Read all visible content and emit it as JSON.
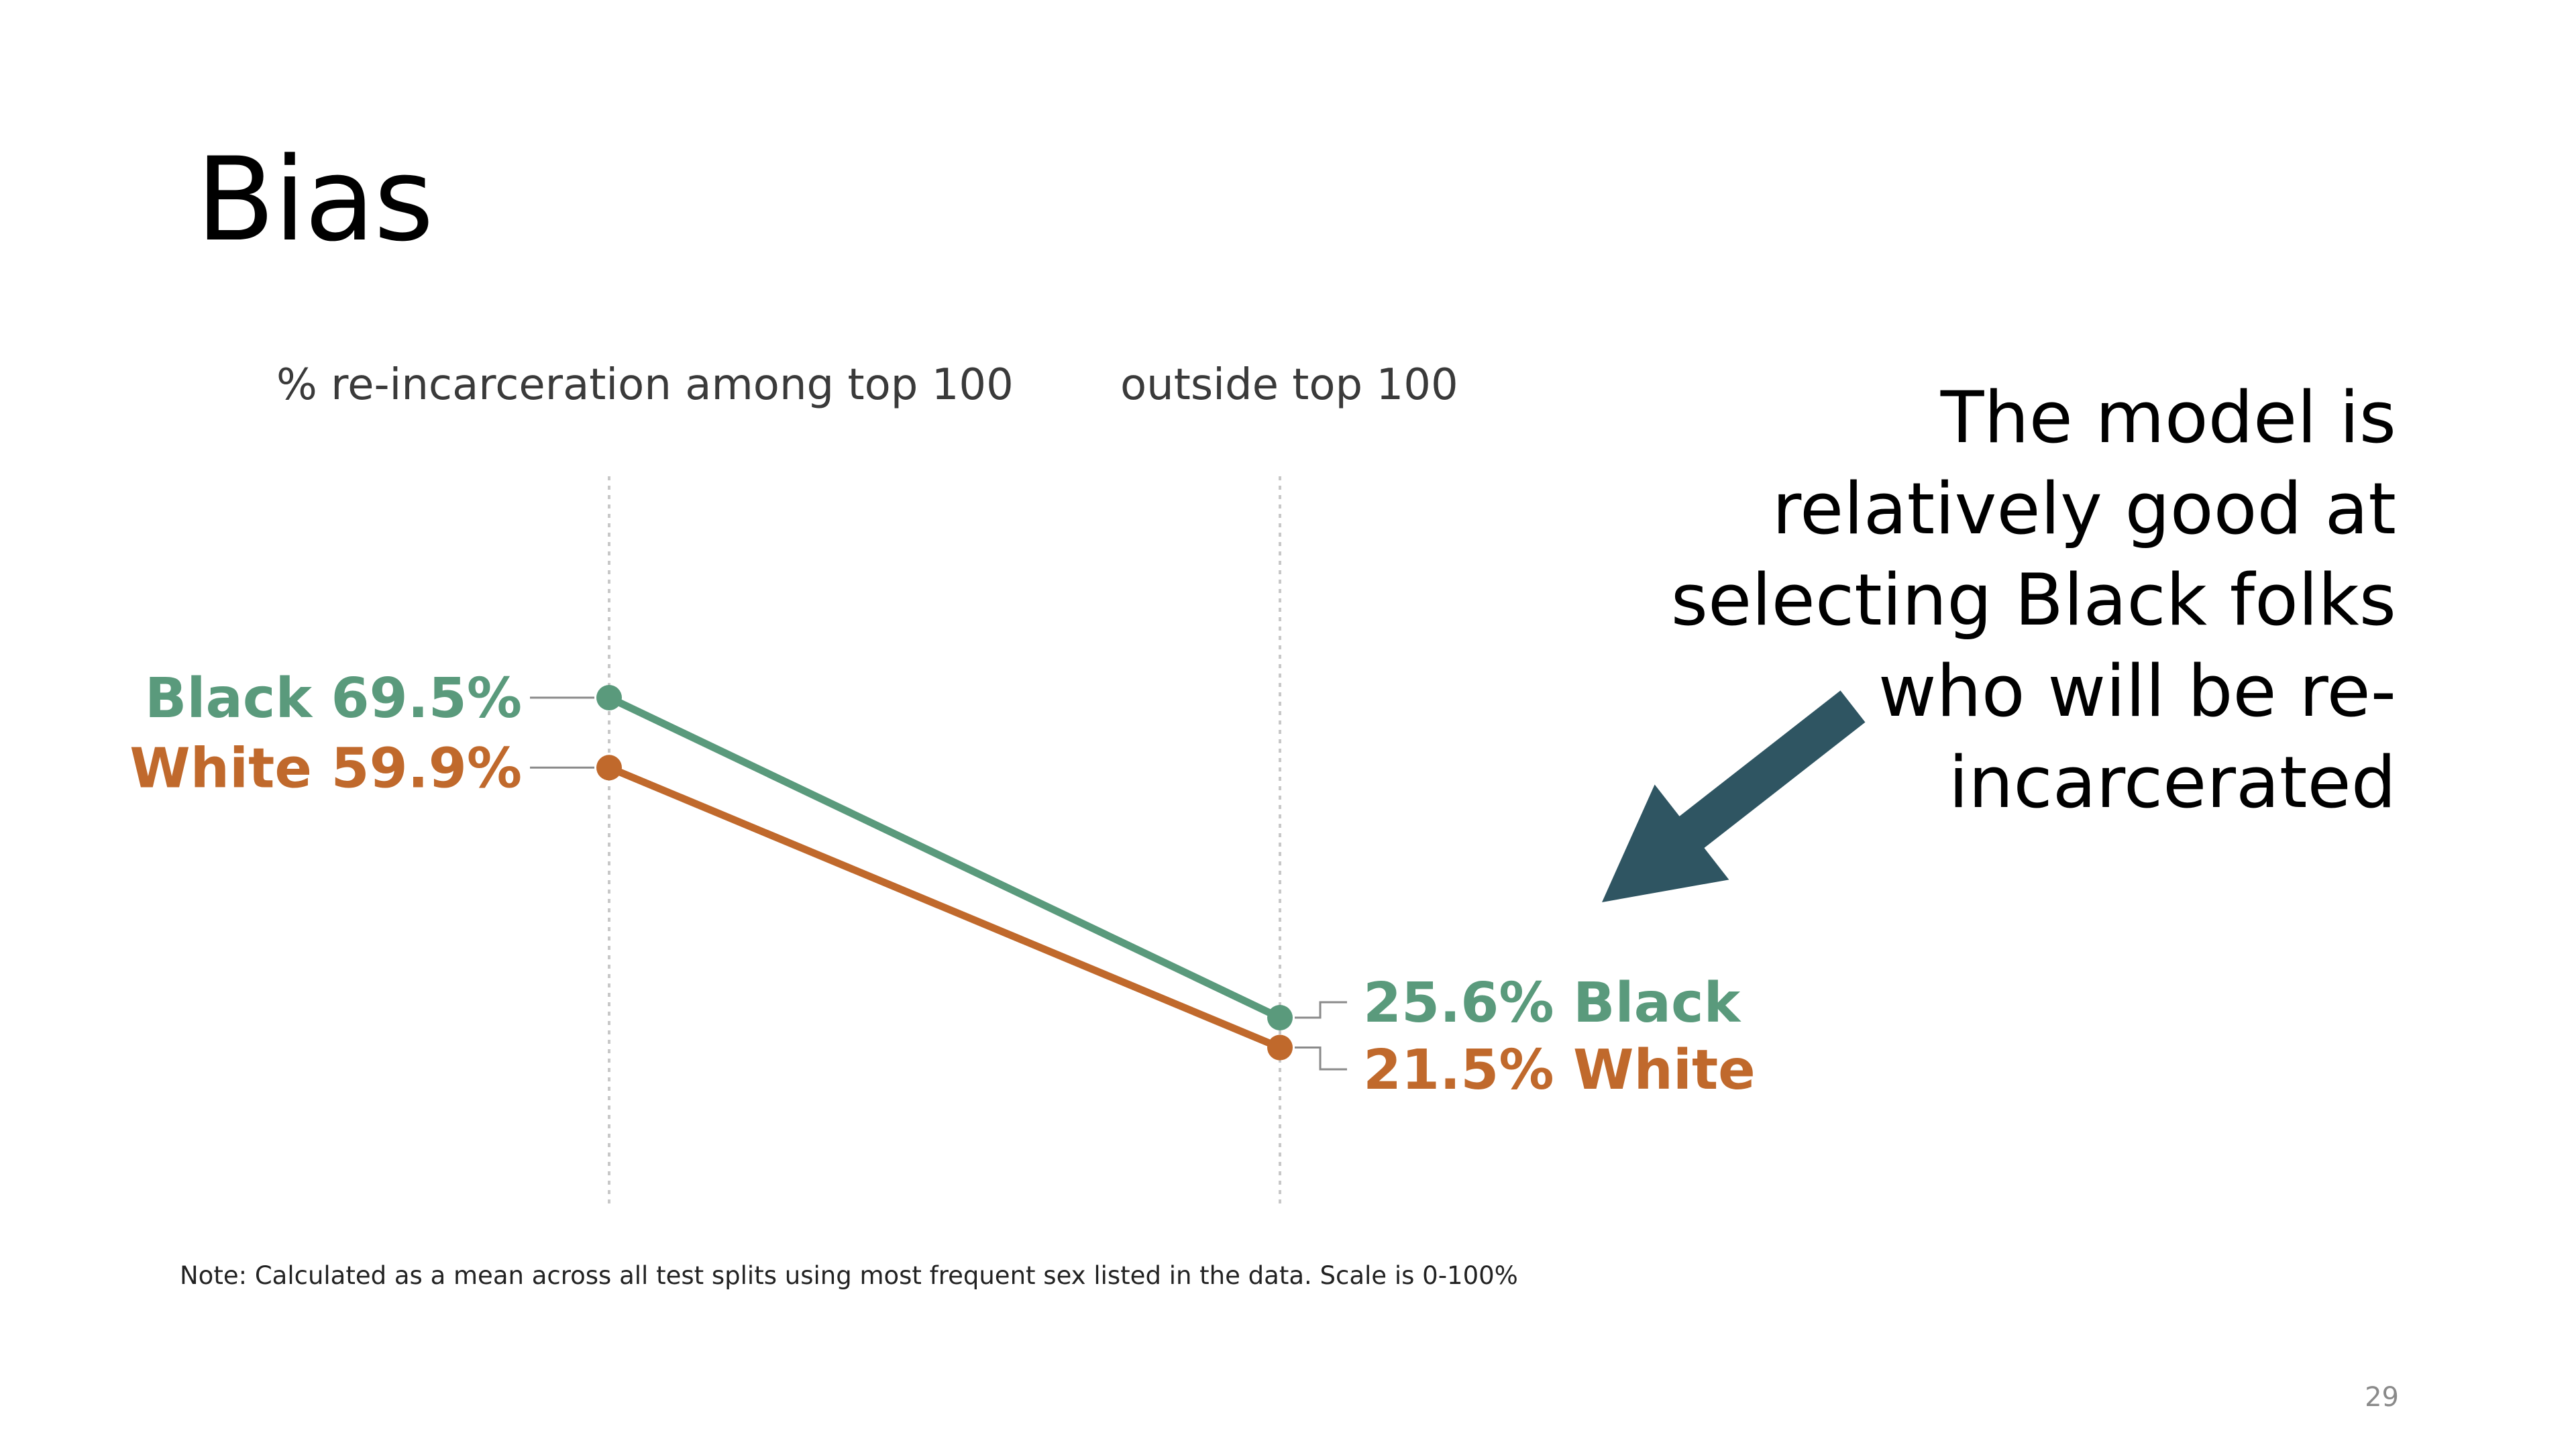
{
  "slide": {
    "title": "Bias",
    "callout": "The model is relatively good at selecting Black folks who will be re-incarcerated",
    "note": "Note: Calculated as a mean across all test splits using most frequent sex listed in the data. Scale is 0-100%",
    "page_number": "29"
  },
  "chart_data": {
    "type": "line",
    "categories": [
      "% re-incarceration among top 100",
      "outside top 100"
    ],
    "series": [
      {
        "name": "Black",
        "values": [
          69.5,
          25.6
        ],
        "color": "#5a9a7c",
        "left_label": "Black 69.5%",
        "right_label": "25.6% Black"
      },
      {
        "name": "White",
        "values": [
          59.9,
          21.5
        ],
        "color": "#c0692c",
        "left_label": "White 59.9%",
        "right_label": "21.5% White"
      }
    ],
    "ylim": [
      0,
      100
    ],
    "grid": "dotted vertical at each category"
  },
  "colors": {
    "arrow": "#2f5562",
    "connector": "#8a8a8a",
    "gridline": "#c8c8c8"
  }
}
